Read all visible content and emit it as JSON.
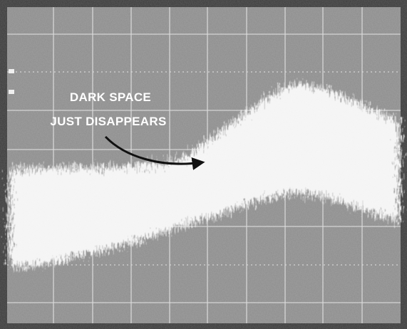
{
  "annotation": {
    "lines": [
      "DARK SPACE",
      "JUST DISAPPEARS"
    ]
  }
}
